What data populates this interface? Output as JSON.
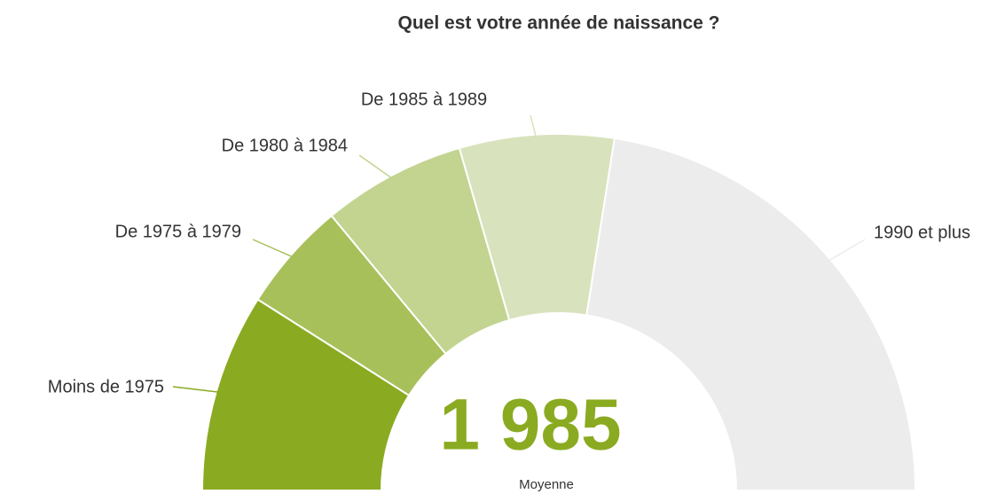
{
  "chart_data": {
    "type": "semi-donut",
    "title": "Quel est votre année de naissance ?",
    "categories": [
      "Moins de 1975",
      "De 1975 à 1979",
      "De 1980 à 1984",
      "De 1985 à 1989",
      "1990 et plus"
    ],
    "values": [
      18,
      10,
      13,
      14,
      45
    ],
    "colors": [
      "#8aab21",
      "#a8c05a",
      "#c2d490",
      "#d8e2bc",
      "#ececec"
    ],
    "center_value": "1 985",
    "center_label": "Moyenne"
  }
}
